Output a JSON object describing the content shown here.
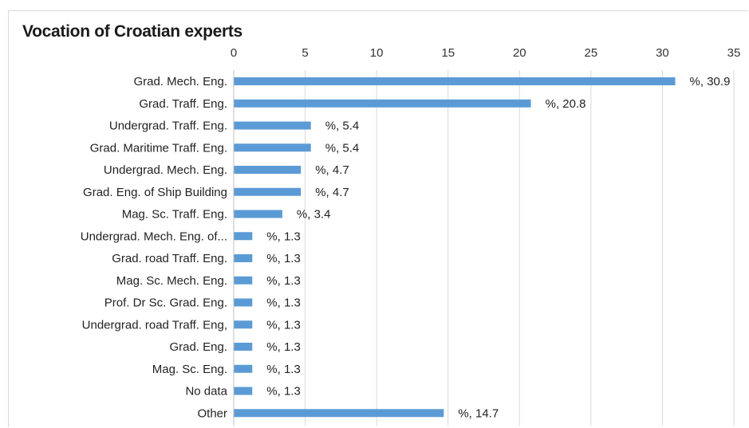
{
  "chart_data": {
    "type": "bar",
    "orientation": "horizontal",
    "title": "Vocation of Croatian experts",
    "xlabel": "",
    "ylabel": "",
    "xlim": [
      0,
      35
    ],
    "x_ticks": [
      0,
      5,
      10,
      15,
      20,
      25,
      30,
      35
    ],
    "x_axis_position": "top",
    "grid": true,
    "legend": "none",
    "bar_color": "#5b9bd5",
    "categories": [
      "Grad. Mech. Eng.",
      "Grad. Traff. Eng.",
      "Undergrad. Traff. Eng.",
      "Grad. Maritime Traff. Eng.",
      "Undergrad. Mech. Eng.",
      "Grad. Eng. of Ship Building",
      "Mag. Sc. Traff. Eng.",
      "Undergrad. Mech. Eng. of...",
      "Grad. road Traff. Eng.",
      "Mag. Sc. Mech. Eng.",
      "Prof. Dr Sc. Grad. Eng.",
      "Undergrad. road Traff. Eng,",
      "Grad. Eng.",
      "Mag. Sc. Eng.",
      "No data",
      "Other"
    ],
    "values": [
      30.9,
      20.8,
      5.4,
      5.4,
      4.7,
      4.7,
      3.4,
      1.3,
      1.3,
      1.3,
      1.3,
      1.3,
      1.3,
      1.3,
      1.3,
      14.7
    ],
    "data_labels": [
      "%, 30.9",
      "%, 20.8",
      "%, 5.4",
      "%, 5.4",
      "%, 4.7",
      "%, 4.7",
      "%, 3.4",
      "%, 1.3",
      "%, 1.3",
      "%, 1.3",
      "%, 1.3",
      "%, 1.3",
      "%, 1.3",
      "%, 1.3",
      "%, 1.3",
      "%, 14.7"
    ]
  }
}
